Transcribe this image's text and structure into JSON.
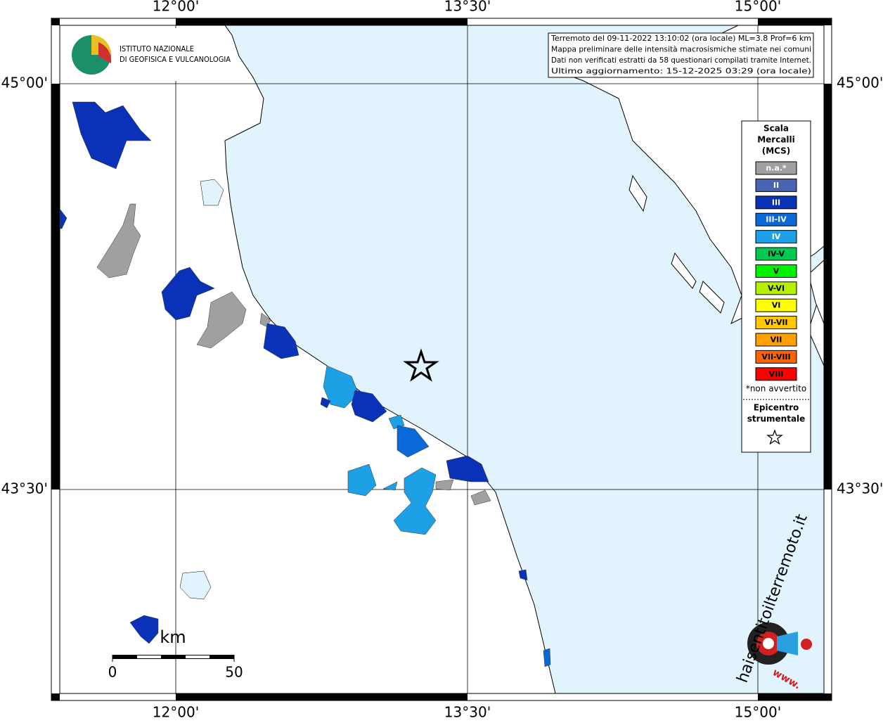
{
  "logo": {
    "line1": "ISTITUTO NAZIONALE",
    "line2": "DI GEOFISICA E VULCANOLOGIA"
  },
  "info": [
    "Terremoto del 09-11-2022 13:10:02 (ora locale) ML=3.8 Prof=6 km",
    "Mappa preliminare delle intensità macrosismiche stimate nei comuni",
    "Dati non verificati estratti da 58 questionari compilati tramite Internet.",
    "Ultimo aggiornamento: 15-12-2025 03:29 (ora locale)"
  ],
  "axes": {
    "lon_labels": [
      "12°00'",
      "13°30'",
      "15°00'"
    ],
    "lat_labels": [
      "45°00'",
      "43°30'"
    ]
  },
  "legend": {
    "title": [
      "Scala",
      "Mercalli",
      "(MCS)"
    ],
    "items": [
      {
        "label": "n.a.*",
        "color": "#a0a0a0"
      },
      {
        "label": "II",
        "color": "#4a64b4"
      },
      {
        "label": "III",
        "color": "#0a32b9"
      },
      {
        "label": "III-IV",
        "color": "#0a69d7"
      },
      {
        "label": "IV",
        "color": "#1ea0e6"
      },
      {
        "label": "IV-V",
        "color": "#00c850"
      },
      {
        "label": "V",
        "color": "#00f000"
      },
      {
        "label": "V-VI",
        "color": "#b4f000"
      },
      {
        "label": "VI",
        "color": "#ffff00"
      },
      {
        "label": "VI-VII",
        "color": "#ffc800"
      },
      {
        "label": "VII",
        "color": "#ffa000"
      },
      {
        "label": "VII-VIII",
        "color": "#ff6400"
      },
      {
        "label": "VIII",
        "color": "#ff0000"
      }
    ],
    "note": "*non avvertito",
    "epicenter": [
      "Epicentro",
      "strumentale"
    ]
  },
  "scale_bar": {
    "unit": "km",
    "labels": [
      "0",
      "50"
    ]
  },
  "watermark": {
    "text": "haisentitoilterremoto.it",
    "www": "www."
  }
}
